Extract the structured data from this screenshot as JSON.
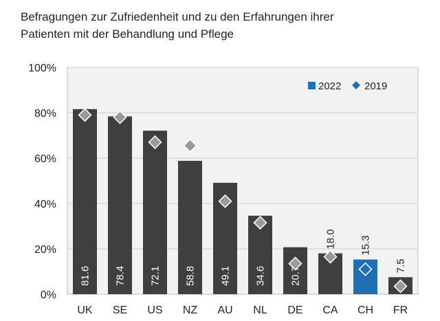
{
  "chart_data": {
    "type": "bar",
    "title_line1": "Befragungen zur Zufriedenheit und zu den Erfahrungen ihrer",
    "title_line2": "Patienten mit der Behandlung und Pflege",
    "categories": [
      "UK",
      "SE",
      "US",
      "NZ",
      "AU",
      "NL",
      "DE",
      "CA",
      "CH",
      "FR"
    ],
    "series": [
      {
        "name": "2022",
        "values": [
          81.6,
          78.4,
          72.1,
          58.8,
          49.1,
          34.6,
          20.7,
          18.0,
          15.3,
          7.5
        ]
      },
      {
        "name": "2019",
        "values": [
          79,
          78,
          67,
          65.5,
          41,
          31.5,
          13.5,
          16.5,
          11,
          3.5
        ]
      }
    ],
    "value_labels": [
      "81.6",
      "78.4",
      "72.1",
      "58.8",
      "49.1",
      "34.6",
      "20.7",
      "18.0",
      "15.3",
      "7.5"
    ],
    "highlight_category": "CH",
    "y_ticks": [
      "0%",
      "20%",
      "40%",
      "60%",
      "80%",
      "100%"
    ],
    "ylim": [
      0,
      100
    ],
    "legend": {
      "position": "top-right",
      "items": [
        "2022",
        "2019"
      ]
    },
    "xlabel": "",
    "ylabel": "",
    "colors": {
      "bar": "#3f3f3f",
      "highlight": "#1f6fb4",
      "marker_default": "#9a9a9a",
      "marker_highlight": "#1f6fb4",
      "grid": "#cfcfcf",
      "plot_bg": "#f2f2f2"
    }
  }
}
